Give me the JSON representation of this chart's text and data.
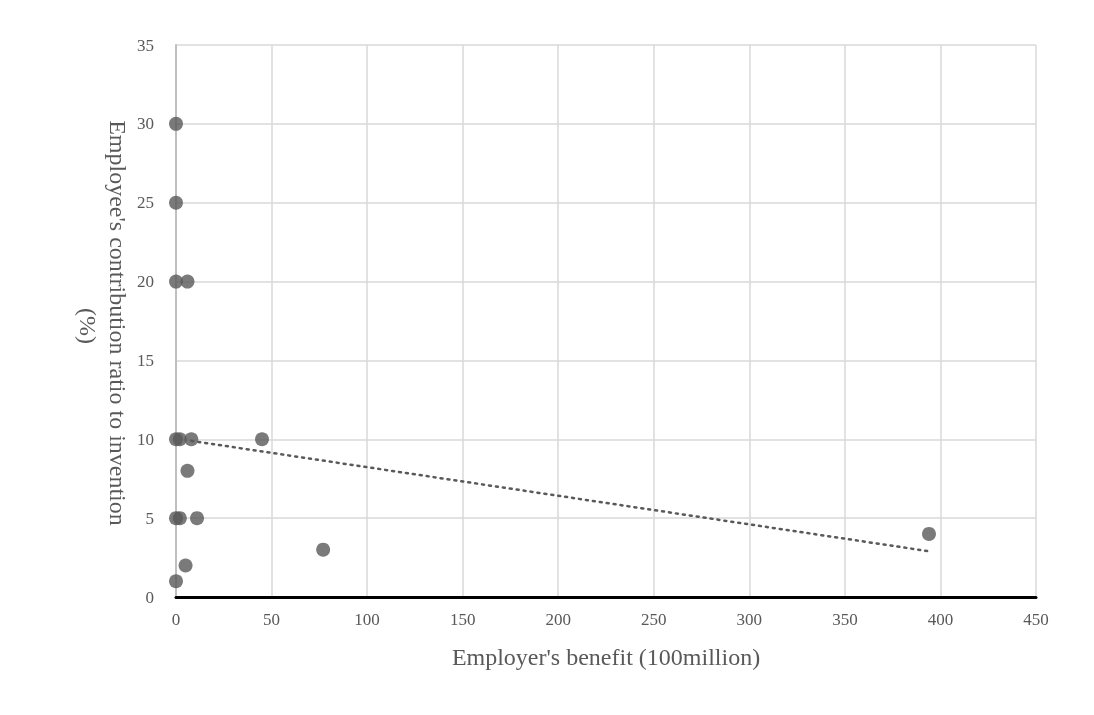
{
  "chart_data": {
    "type": "scatter",
    "xlabel": "Employer's benefit (100million)",
    "ylabel": "Employee's contribution ratio to invention (%)",
    "xlim": [
      0,
      450
    ],
    "xticks": [
      0,
      50,
      100,
      150,
      200,
      250,
      300,
      350,
      400,
      450
    ],
    "ylim": [
      0,
      35
    ],
    "yticks": [
      0,
      5,
      10,
      15,
      20,
      25,
      30,
      35
    ],
    "grid": true,
    "marker": "circle",
    "series": [
      {
        "color": "#595959",
        "x": [
          0,
          0,
          0,
          6,
          0,
          2,
          8,
          45,
          6,
          0,
          2,
          11,
          77,
          5,
          0,
          394
        ],
        "values": [
          30,
          25,
          20,
          20,
          10,
          10,
          10,
          10,
          8,
          5,
          5,
          5,
          3,
          2,
          1,
          4
        ]
      },
      {
        "type": "line",
        "color": "#595959",
        "line_style": "dotted",
        "marker": "none",
        "x": [
          8,
          394
        ],
        "values": [
          9.9,
          2.9
        ]
      }
    ]
  }
}
